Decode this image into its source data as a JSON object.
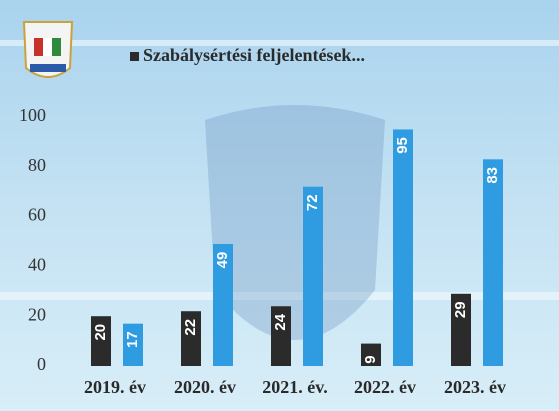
{
  "chart_data": {
    "type": "bar",
    "categories": [
      "2019. év",
      "2020. év",
      "2021. év.",
      "2022. év",
      "2023. év"
    ],
    "series": [
      {
        "name": "Szabálysértési feljelentések...",
        "color": "#2b2b2b",
        "values": [
          20,
          22,
          24,
          9,
          29
        ]
      },
      {
        "color": "#2f9be0",
        "values": [
          17,
          49,
          72,
          95,
          83
        ]
      }
    ],
    "ylim": [
      0,
      100
    ],
    "yticks": [
      0,
      20,
      40,
      60,
      80,
      100
    ],
    "grid": false
  }
}
